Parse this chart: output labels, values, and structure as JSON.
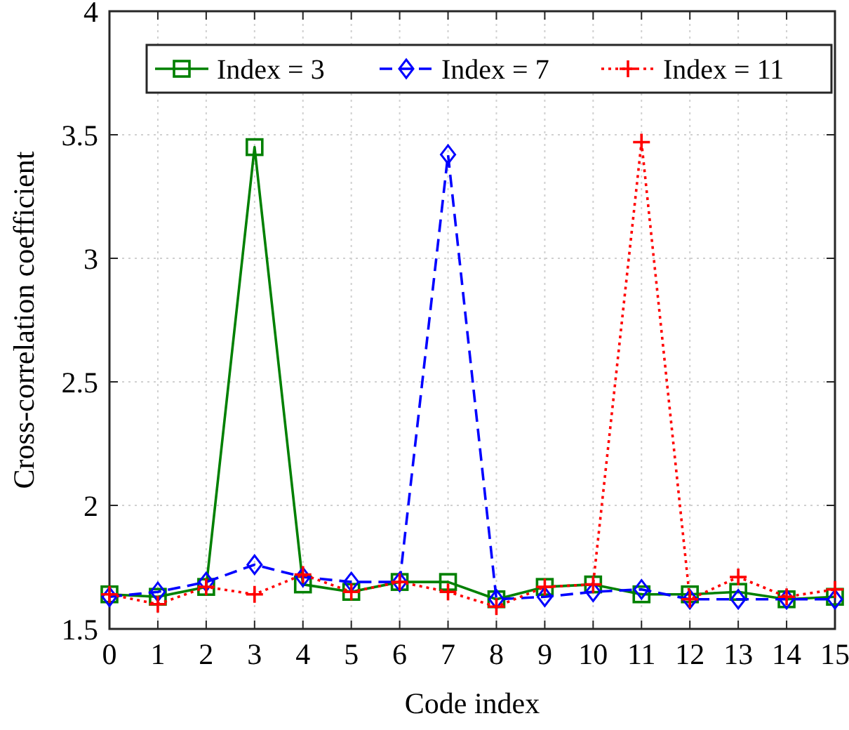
{
  "chart_data": {
    "type": "line",
    "xlabel": "Code index",
    "ylabel": "Cross-correlation coefficient",
    "x": [
      0,
      1,
      2,
      3,
      4,
      5,
      6,
      7,
      8,
      9,
      10,
      11,
      12,
      13,
      14,
      15
    ],
    "xlim": [
      0,
      15
    ],
    "xticks": [
      0,
      1,
      2,
      3,
      4,
      5,
      6,
      7,
      8,
      9,
      10,
      11,
      12,
      13,
      14,
      15
    ],
    "ylim": [
      1.5,
      4
    ],
    "yticks": [
      1.5,
      2,
      2.5,
      3,
      3.5,
      4
    ],
    "grid": true,
    "legend": "top",
    "series": [
      {
        "name": "Index = 3",
        "color": "#008000",
        "marker": "square",
        "line_style": "solid",
        "values": [
          1.64,
          1.63,
          1.67,
          3.45,
          1.68,
          1.65,
          1.69,
          1.69,
          1.62,
          1.67,
          1.68,
          1.64,
          1.64,
          1.65,
          1.62,
          1.63
        ]
      },
      {
        "name": "Index = 7",
        "color": "#0000ff",
        "marker": "diamond",
        "line_style": "dashed",
        "values": [
          1.63,
          1.65,
          1.69,
          1.76,
          1.71,
          1.69,
          1.69,
          3.42,
          1.62,
          1.63,
          1.65,
          1.66,
          1.62,
          1.62,
          1.62,
          1.62
        ]
      },
      {
        "name": "Index = 11",
        "color": "#ff0000",
        "marker": "cross",
        "line_style": "dotted",
        "values": [
          1.64,
          1.6,
          1.67,
          1.64,
          1.72,
          1.65,
          1.69,
          1.65,
          1.59,
          1.67,
          1.68,
          3.47,
          1.62,
          1.71,
          1.63,
          1.66
        ]
      }
    ]
  }
}
